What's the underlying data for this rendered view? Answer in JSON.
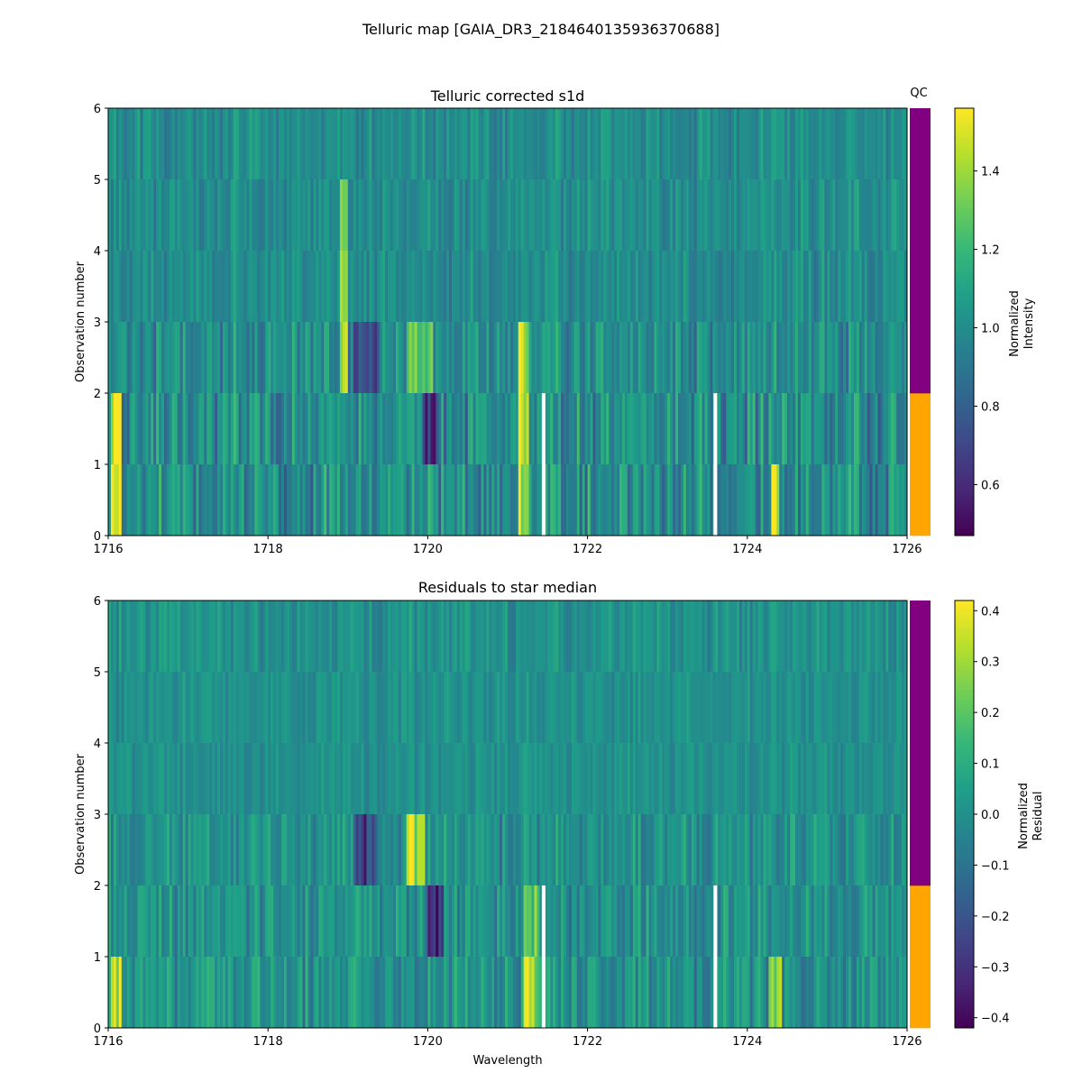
{
  "figure_title": "Telluric map [GAIA_DR3_2184640135936370688]",
  "qc_label": "QC",
  "qc_colors": {
    "fail": "#ffa500",
    "pass": "#800080"
  },
  "chart_data": [
    {
      "type": "heatmap",
      "title": "Telluric corrected s1d",
      "xlabel": "",
      "ylabel": "Observation number",
      "xlim": [
        1716,
        1726
      ],
      "ylim": [
        0,
        6
      ],
      "xticks": [
        "1716",
        "1718",
        "1720",
        "1722",
        "1724",
        "1726"
      ],
      "yticks": [
        "0",
        "1",
        "2",
        "3",
        "4",
        "5",
        "6"
      ],
      "colorbar": {
        "label": [
          "Normalized",
          "Intensity"
        ],
        "vmin": 0.47,
        "vmax": 1.56,
        "ticks": [
          "0.6",
          "0.8",
          "1.0",
          "1.2",
          "1.4"
        ],
        "tick_values": [
          0.6,
          0.8,
          1.0,
          1.2,
          1.4
        ],
        "colormap": "viridis"
      },
      "rows": [
        {
          "obs": 0,
          "qc": "fail",
          "spread": 0.2
        },
        {
          "obs": 1,
          "qc": "fail",
          "spread": 0.2
        },
        {
          "obs": 2,
          "qc": "pass",
          "spread": 0.17
        },
        {
          "obs": 3,
          "qc": "pass",
          "spread": 0.11
        },
        {
          "obs": 4,
          "qc": "pass",
          "spread": 0.1
        },
        {
          "obs": 5,
          "qc": "pass",
          "spread": 0.11
        }
      ],
      "gaps": [
        {
          "x": 1721.45,
          "rows": [
            0,
            1
          ]
        },
        {
          "x": 1723.6,
          "rows": [
            0,
            1
          ]
        }
      ],
      "features": [
        {
          "x": 1716.1,
          "width": 0.12,
          "delta": 0.55,
          "rows": [
            0,
            1
          ]
        },
        {
          "x": 1721.2,
          "width": 0.15,
          "delta": 0.45,
          "rows": [
            0,
            1,
            2
          ]
        },
        {
          "x": 1724.35,
          "width": 0.12,
          "delta": 0.55,
          "rows": [
            0
          ]
        },
        {
          "x": 1719.9,
          "width": 0.35,
          "delta": 0.25,
          "rows": [
            2
          ]
        },
        {
          "x": 1719.2,
          "width": 0.3,
          "delta": -0.3,
          "rows": [
            2
          ]
        },
        {
          "x": 1720.05,
          "width": 0.2,
          "delta": -0.35,
          "rows": [
            1
          ]
        },
        {
          "x": 1718.95,
          "width": 0.08,
          "delta": 0.35,
          "rows": [
            2,
            3,
            4
          ]
        }
      ]
    },
    {
      "type": "heatmap",
      "title": "Residuals to star median",
      "xlabel": "Wavelength",
      "ylabel": "Observation number",
      "xlim": [
        1716,
        1726
      ],
      "ylim": [
        0,
        6
      ],
      "xticks": [
        "1716",
        "1718",
        "1720",
        "1722",
        "1724",
        "1726"
      ],
      "yticks": [
        "0",
        "1",
        "2",
        "3",
        "4",
        "5",
        "6"
      ],
      "colorbar": {
        "label": [
          "Normalized",
          "Residual"
        ],
        "vmin": -0.42,
        "vmax": 0.42,
        "ticks": [
          "−0.4",
          "−0.3",
          "−0.2",
          "−0.1",
          "0.0",
          "0.1",
          "0.2",
          "0.3",
          "0.4"
        ],
        "tick_values": [
          -0.4,
          -0.3,
          -0.2,
          -0.1,
          0.0,
          0.1,
          0.2,
          0.3,
          0.4
        ],
        "colormap": "viridis"
      },
      "rows": [
        {
          "obs": 0,
          "qc": "fail",
          "spread": 0.12
        },
        {
          "obs": 1,
          "qc": "fail",
          "spread": 0.12
        },
        {
          "obs": 2,
          "qc": "pass",
          "spread": 0.11
        },
        {
          "obs": 3,
          "qc": "pass",
          "spread": 0.06
        },
        {
          "obs": 4,
          "qc": "pass",
          "spread": 0.06
        },
        {
          "obs": 5,
          "qc": "pass",
          "spread": 0.08
        }
      ],
      "gaps": [
        {
          "x": 1721.45,
          "rows": [
            0,
            1
          ]
        },
        {
          "x": 1723.6,
          "rows": [
            0,
            1
          ]
        }
      ],
      "features": [
        {
          "x": 1716.1,
          "width": 0.12,
          "delta": 0.38,
          "rows": [
            0
          ]
        },
        {
          "x": 1721.3,
          "width": 0.2,
          "delta": 0.3,
          "rows": [
            0,
            1
          ]
        },
        {
          "x": 1724.35,
          "width": 0.15,
          "delta": 0.25,
          "rows": [
            0
          ]
        },
        {
          "x": 1719.85,
          "width": 0.25,
          "delta": 0.3,
          "rows": [
            2
          ]
        },
        {
          "x": 1719.2,
          "width": 0.3,
          "delta": -0.25,
          "rows": [
            2
          ]
        },
        {
          "x": 1720.1,
          "width": 0.2,
          "delta": -0.3,
          "rows": [
            1
          ]
        }
      ]
    }
  ]
}
